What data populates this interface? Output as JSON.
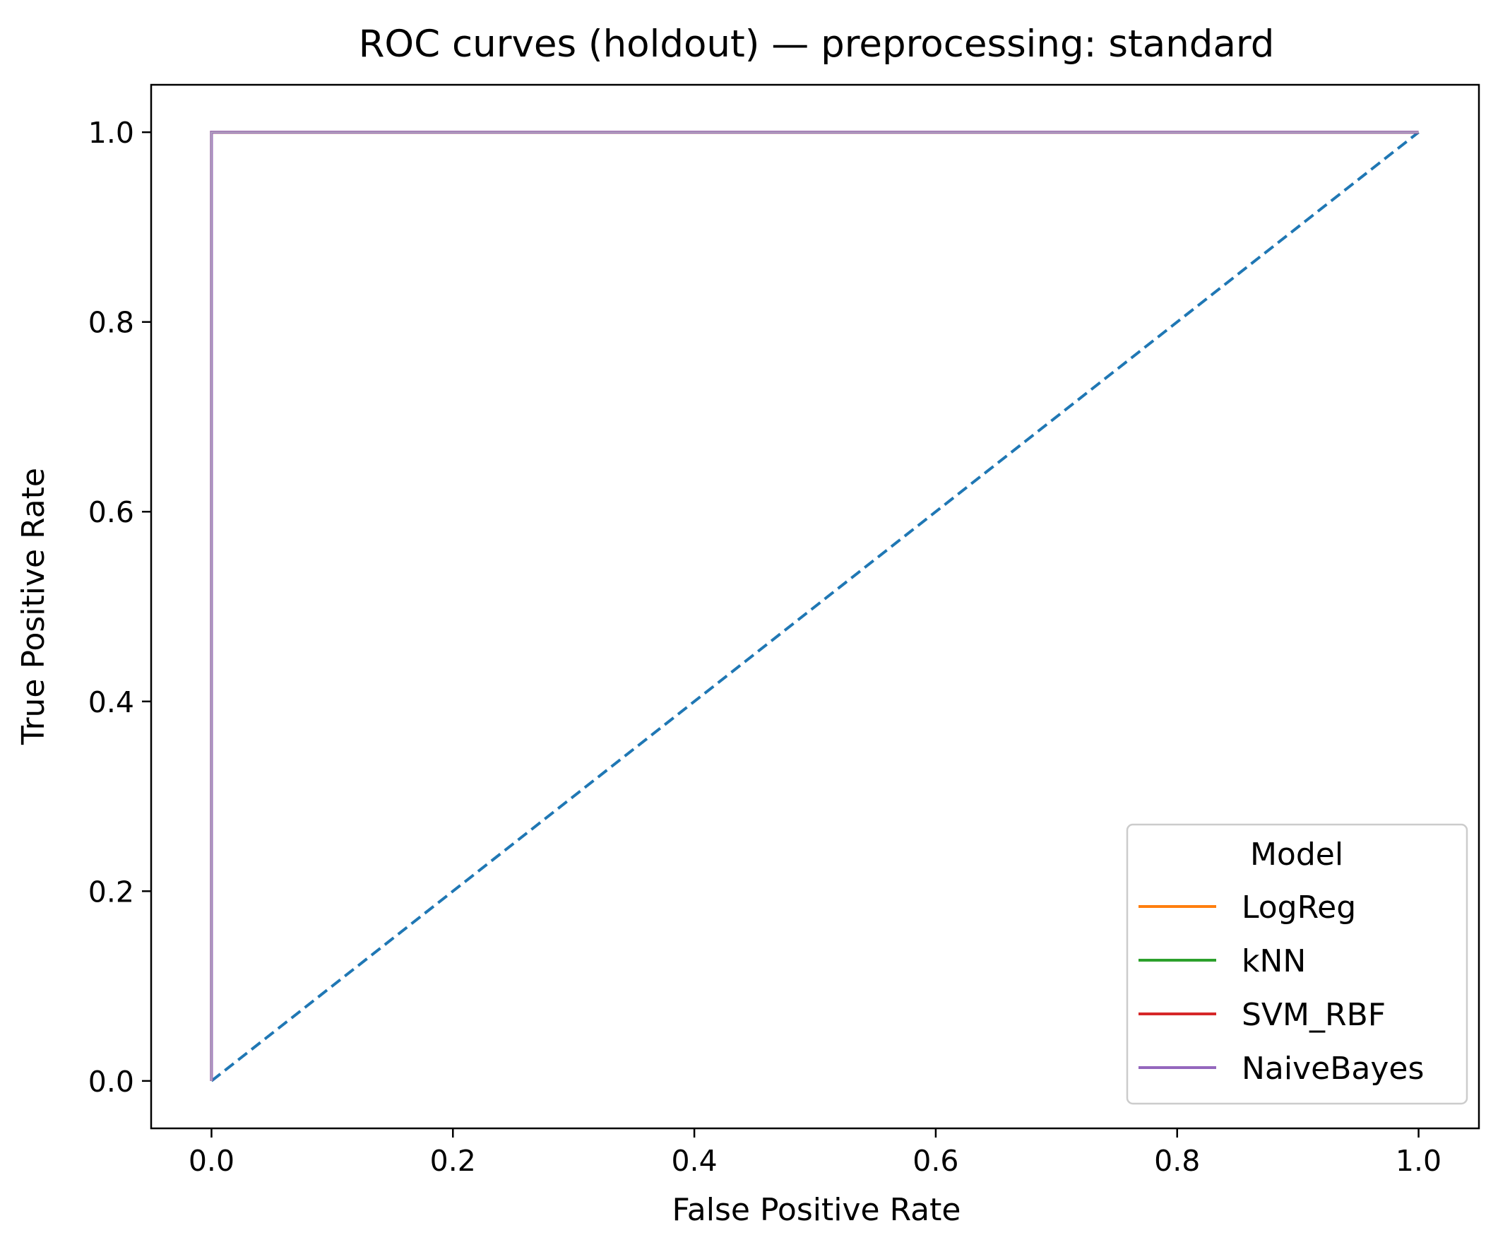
{
  "chart_data": {
    "type": "line",
    "title": "ROC curves (holdout) — preprocessing: standard",
    "xlabel": "False Positive Rate",
    "ylabel": "True Positive Rate",
    "xlim": [
      -0.05,
      1.05
    ],
    "ylim": [
      -0.05,
      1.05
    ],
    "xticks": [
      "0.0",
      "0.2",
      "0.4",
      "0.6",
      "0.8",
      "1.0"
    ],
    "yticks": [
      "0.0",
      "0.2",
      "0.4",
      "0.6",
      "0.8",
      "1.0"
    ],
    "grid": false,
    "legend": {
      "title": "Model",
      "placement": "lower-right"
    },
    "series": [
      {
        "name": "LogReg",
        "color": "#ff7f0e",
        "x": [
          0,
          0,
          1
        ],
        "y": [
          0,
          1,
          1
        ]
      },
      {
        "name": "kNN",
        "color": "#2ca02c",
        "x": [
          0,
          0,
          1
        ],
        "y": [
          0,
          1,
          1
        ]
      },
      {
        "name": "SVM_RBF",
        "color": "#d62728",
        "x": [
          0,
          0,
          1
        ],
        "y": [
          0,
          1,
          1
        ]
      },
      {
        "name": "NaiveBayes",
        "color": "#9467bd",
        "x": [
          0,
          0,
          1
        ],
        "y": [
          0,
          1,
          1
        ]
      }
    ],
    "reference_line": {
      "style": "dashed",
      "color": "#1f77b4",
      "x": [
        0,
        1
      ],
      "y": [
        0,
        1
      ]
    }
  }
}
